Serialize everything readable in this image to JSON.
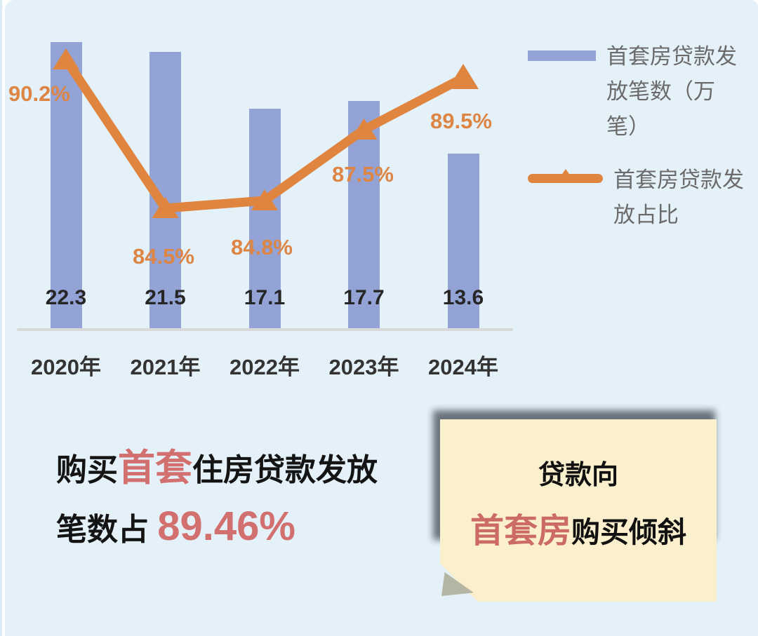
{
  "chart_data": {
    "type": "bar",
    "subtype": "bar+line-combo",
    "categories": [
      "2020年",
      "2021年",
      "2022年",
      "2023年",
      "2024年"
    ],
    "series": [
      {
        "name": "首套房贷款发放笔数（万笔）",
        "type": "bar",
        "values": [
          22.3,
          21.5,
          17.1,
          17.7,
          13.6
        ],
        "labels": [
          "22.3",
          "21.5",
          "17.1",
          "17.7",
          "13.6"
        ],
        "color": "#93a3d6"
      },
      {
        "name": "首套房贷款发放占比",
        "type": "line",
        "unit": "%",
        "values": [
          90.2,
          84.5,
          84.8,
          87.5,
          89.5
        ],
        "labels": [
          "90.2%",
          "84.5%",
          "84.8%",
          "87.5%",
          "89.5%"
        ],
        "color": "#e08540"
      }
    ],
    "title": "",
    "xlabel": "",
    "ylabel": "",
    "bar_axis_range": [
      0,
      25
    ],
    "line_axis_range": [
      82,
      92
    ],
    "grid": false,
    "legend_position": "right"
  },
  "legend": {
    "bar_label": "首套房贷款发\n放笔数（万\n笔）",
    "line_label": "首套房贷款发\n放占比"
  },
  "summary": {
    "l1_black1": "购买",
    "l1_red": "首套",
    "l1_black2": "住房贷款发放",
    "l2_black": "笔数占 ",
    "l2_red": "89.46%"
  },
  "note": {
    "line1": "贷款向",
    "line2_red": "首套房",
    "line2_black": "购买倾斜"
  },
  "colors": {
    "background": "#e5f1f9",
    "bar": "#93a3d6",
    "line": "#e08540",
    "percent_label": "#dd8544",
    "bar_value_label": "#262626",
    "category_label": "#333333",
    "legend_text": "#6b6b6b",
    "axis_line": "#d8d8d8",
    "highlight_red": "#d2706f",
    "note_background": "#fbf0cd",
    "note_red": "#cc6a67",
    "note_fold": "#b4b5a2"
  }
}
